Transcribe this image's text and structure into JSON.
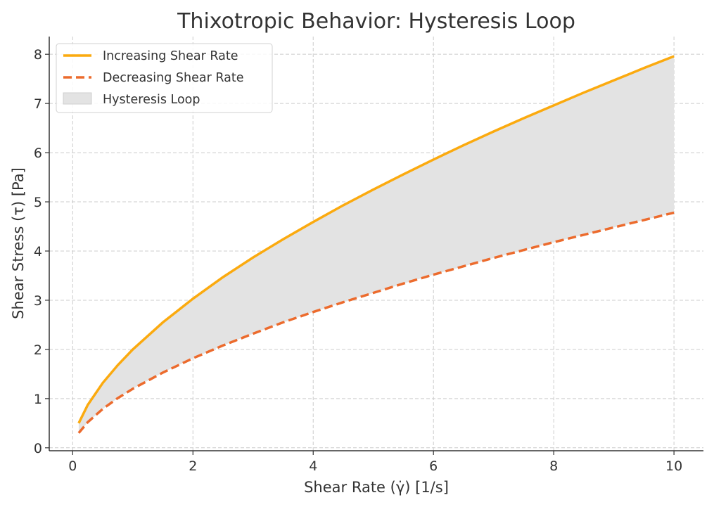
{
  "chart_data": {
    "type": "line",
    "title": "Thixotropic Behavior: Hysteresis Loop",
    "xlabel": "Shear Rate (γ̇) [1/s]",
    "ylabel": "Shear Stress (τ) [Pa]",
    "xlim": [
      -0.39,
      10.49
    ],
    "ylim": [
      -0.06,
      8.36
    ],
    "xticks": [
      0,
      2,
      4,
      6,
      8,
      10
    ],
    "yticks": [
      0,
      1,
      2,
      3,
      4,
      5,
      6,
      7,
      8
    ],
    "grid": true,
    "legend_position": "top-left",
    "x": [
      0.1,
      0.25,
      0.5,
      0.75,
      1,
      1.5,
      2,
      2.5,
      3,
      3.5,
      4,
      4.5,
      5,
      5.5,
      6,
      6.5,
      7,
      7.5,
      8,
      8.5,
      9,
      9.5,
      10
    ],
    "series": [
      {
        "name": "Increasing Shear Rate",
        "style": "solid",
        "color": "#FBAA0F",
        "values": [
          0.5,
          0.87,
          1.32,
          1.68,
          2.0,
          2.55,
          3.03,
          3.47,
          3.87,
          4.24,
          4.59,
          4.93,
          5.25,
          5.56,
          5.86,
          6.15,
          6.43,
          6.7,
          6.96,
          7.22,
          7.47,
          7.72,
          7.96
        ]
      },
      {
        "name": "Decreasing Shear Rate",
        "style": "dashed",
        "color": "#EC6B2D",
        "values": [
          0.3,
          0.52,
          0.79,
          1.01,
          1.2,
          1.53,
          1.82,
          2.08,
          2.32,
          2.55,
          2.76,
          2.96,
          3.15,
          3.34,
          3.52,
          3.69,
          3.86,
          4.02,
          4.18,
          4.33,
          4.48,
          4.63,
          4.78
        ]
      }
    ],
    "fill": {
      "name": "Hysteresis Loop",
      "color": "#e3e3e3"
    }
  }
}
